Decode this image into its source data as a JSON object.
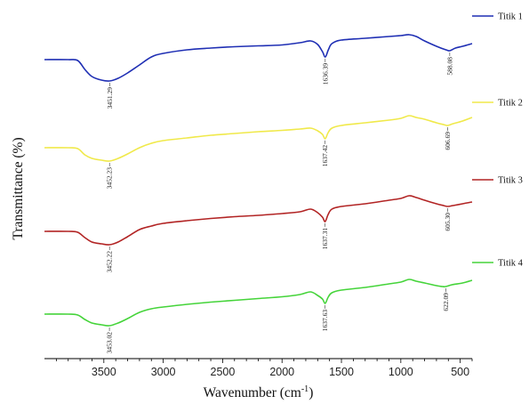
{
  "chart_data": {
    "type": "line",
    "xlabel": "Wavenumber (cm",
    "xlabel_superscript": "-1",
    "xlabel_suffix": ")",
    "ylabel": "Transmittance (%)",
    "xlim": [
      4000,
      400
    ],
    "x_reversed": true,
    "x_ticks": [
      3500,
      3000,
      2500,
      2000,
      1500,
      1000,
      500
    ],
    "y_ticks_shown": false,
    "grid": false,
    "legend_placement": "right, beside each trace",
    "series": [
      {
        "name": "Titik 1",
        "color": "#1f2fb4",
        "points": [
          [
            4000,
            67
          ],
          [
            3800,
            67
          ],
          [
            3720,
            68
          ],
          [
            3660,
            78
          ],
          [
            3600,
            86
          ],
          [
            3520,
            90
          ],
          [
            3452,
            91
          ],
          [
            3380,
            88
          ],
          [
            3300,
            82
          ],
          [
            3200,
            73
          ],
          [
            3100,
            64
          ],
          [
            3000,
            60
          ],
          [
            2800,
            56
          ],
          [
            2600,
            54
          ],
          [
            2400,
            52.5
          ],
          [
            2200,
            51.5
          ],
          [
            2000,
            50.5
          ],
          [
            1850,
            48
          ],
          [
            1760,
            46
          ],
          [
            1700,
            50
          ],
          [
            1660,
            58
          ],
          [
            1636,
            64
          ],
          [
            1610,
            56
          ],
          [
            1580,
            49
          ],
          [
            1500,
            45
          ],
          [
            1300,
            43
          ],
          [
            1100,
            41
          ],
          [
            1000,
            40
          ],
          [
            930,
            39
          ],
          [
            870,
            41
          ],
          [
            800,
            46
          ],
          [
            700,
            52
          ],
          [
            620,
            56
          ],
          [
            588,
            57
          ],
          [
            540,
            54
          ],
          [
            480,
            52
          ],
          [
            400,
            49
          ]
        ],
        "peaks": [
          {
            "x": 3451.29,
            "label": "3451.29"
          },
          {
            "x": 1636.39,
            "label": "1636.39"
          },
          {
            "x": 588.08,
            "label": "588.08"
          }
        ]
      },
      {
        "name": "Titik 2",
        "color": "#f0e94a",
        "points": [
          [
            4000,
            166
          ],
          [
            3800,
            166
          ],
          [
            3720,
            167
          ],
          [
            3660,
            174
          ],
          [
            3600,
            178
          ],
          [
            3520,
            180
          ],
          [
            3452,
            181
          ],
          [
            3380,
            178
          ],
          [
            3300,
            173
          ],
          [
            3200,
            166
          ],
          [
            3100,
            161
          ],
          [
            3000,
            158
          ],
          [
            2800,
            155
          ],
          [
            2600,
            152
          ],
          [
            2400,
            150
          ],
          [
            2200,
            148
          ],
          [
            2000,
            146.5
          ],
          [
            1850,
            145
          ],
          [
            1760,
            144
          ],
          [
            1700,
            147
          ],
          [
            1660,
            151
          ],
          [
            1637,
            156
          ],
          [
            1612,
            149
          ],
          [
            1580,
            144
          ],
          [
            1500,
            141
          ],
          [
            1300,
            138
          ],
          [
            1100,
            135
          ],
          [
            1000,
            133
          ],
          [
            930,
            130
          ],
          [
            870,
            132
          ],
          [
            800,
            134
          ],
          [
            700,
            138
          ],
          [
            640,
            140
          ],
          [
            606,
            141
          ],
          [
            560,
            139
          ],
          [
            480,
            136
          ],
          [
            400,
            132
          ]
        ],
        "peaks": [
          {
            "x": 3452.23,
            "label": "3452.23"
          },
          {
            "x": 1637.42,
            "label": "1637.42"
          },
          {
            "x": 606.69,
            "label": "606.69"
          }
        ]
      },
      {
        "name": "Titik 3",
        "color": "#b22424",
        "points": [
          [
            4000,
            260
          ],
          [
            3800,
            260
          ],
          [
            3720,
            261
          ],
          [
            3660,
            267
          ],
          [
            3600,
            272
          ],
          [
            3520,
            274
          ],
          [
            3452,
            275
          ],
          [
            3380,
            272
          ],
          [
            3300,
            266
          ],
          [
            3200,
            258
          ],
          [
            3100,
            254
          ],
          [
            3000,
            251
          ],
          [
            2800,
            248
          ],
          [
            2600,
            245.5
          ],
          [
            2400,
            243.5
          ],
          [
            2200,
            242
          ],
          [
            2000,
            240
          ],
          [
            1850,
            238
          ],
          [
            1760,
            235
          ],
          [
            1700,
            239
          ],
          [
            1660,
            244
          ],
          [
            1637,
            249
          ],
          [
            1612,
            241
          ],
          [
            1580,
            235
          ],
          [
            1500,
            232
          ],
          [
            1300,
            229
          ],
          [
            1100,
            225
          ],
          [
            1000,
            223
          ],
          [
            930,
            220
          ],
          [
            870,
            222
          ],
          [
            800,
            225
          ],
          [
            700,
            229
          ],
          [
            640,
            231
          ],
          [
            605,
            232
          ],
          [
            560,
            231
          ],
          [
            480,
            229
          ],
          [
            400,
            227
          ]
        ],
        "peaks": [
          {
            "x": 3452.22,
            "label": "3452.22"
          },
          {
            "x": 1637.31,
            "label": "1637.31"
          },
          {
            "x": 605.3,
            "label": "605.30"
          }
        ]
      },
      {
        "name": "Titik 4",
        "color": "#45d43a",
        "points": [
          [
            4000,
            353
          ],
          [
            3800,
            353
          ],
          [
            3720,
            354
          ],
          [
            3660,
            359
          ],
          [
            3600,
            363
          ],
          [
            3520,
            365
          ],
          [
            3453,
            366
          ],
          [
            3380,
            363
          ],
          [
            3300,
            358
          ],
          [
            3200,
            351
          ],
          [
            3100,
            347
          ],
          [
            3000,
            345
          ],
          [
            2800,
            342
          ],
          [
            2600,
            339.5
          ],
          [
            2400,
            337.5
          ],
          [
            2200,
            335.5
          ],
          [
            2000,
            333.5
          ],
          [
            1850,
            331
          ],
          [
            1760,
            328
          ],
          [
            1700,
            332
          ],
          [
            1660,
            336
          ],
          [
            1637,
            341
          ],
          [
            1612,
            334
          ],
          [
            1580,
            329
          ],
          [
            1500,
            326
          ],
          [
            1300,
            323
          ],
          [
            1100,
            319
          ],
          [
            1000,
            317
          ],
          [
            930,
            314
          ],
          [
            870,
            316
          ],
          [
            800,
            318
          ],
          [
            700,
            321
          ],
          [
            650,
            322
          ],
          [
            622,
            322
          ],
          [
            570,
            320
          ],
          [
            480,
            318
          ],
          [
            400,
            315
          ]
        ],
        "peaks": [
          {
            "x": 3453.02,
            "label": "3453.02"
          },
          {
            "x": 1637.63,
            "label": "1637.63"
          },
          {
            "x": 622.09,
            "label": "622.09"
          }
        ]
      }
    ]
  }
}
